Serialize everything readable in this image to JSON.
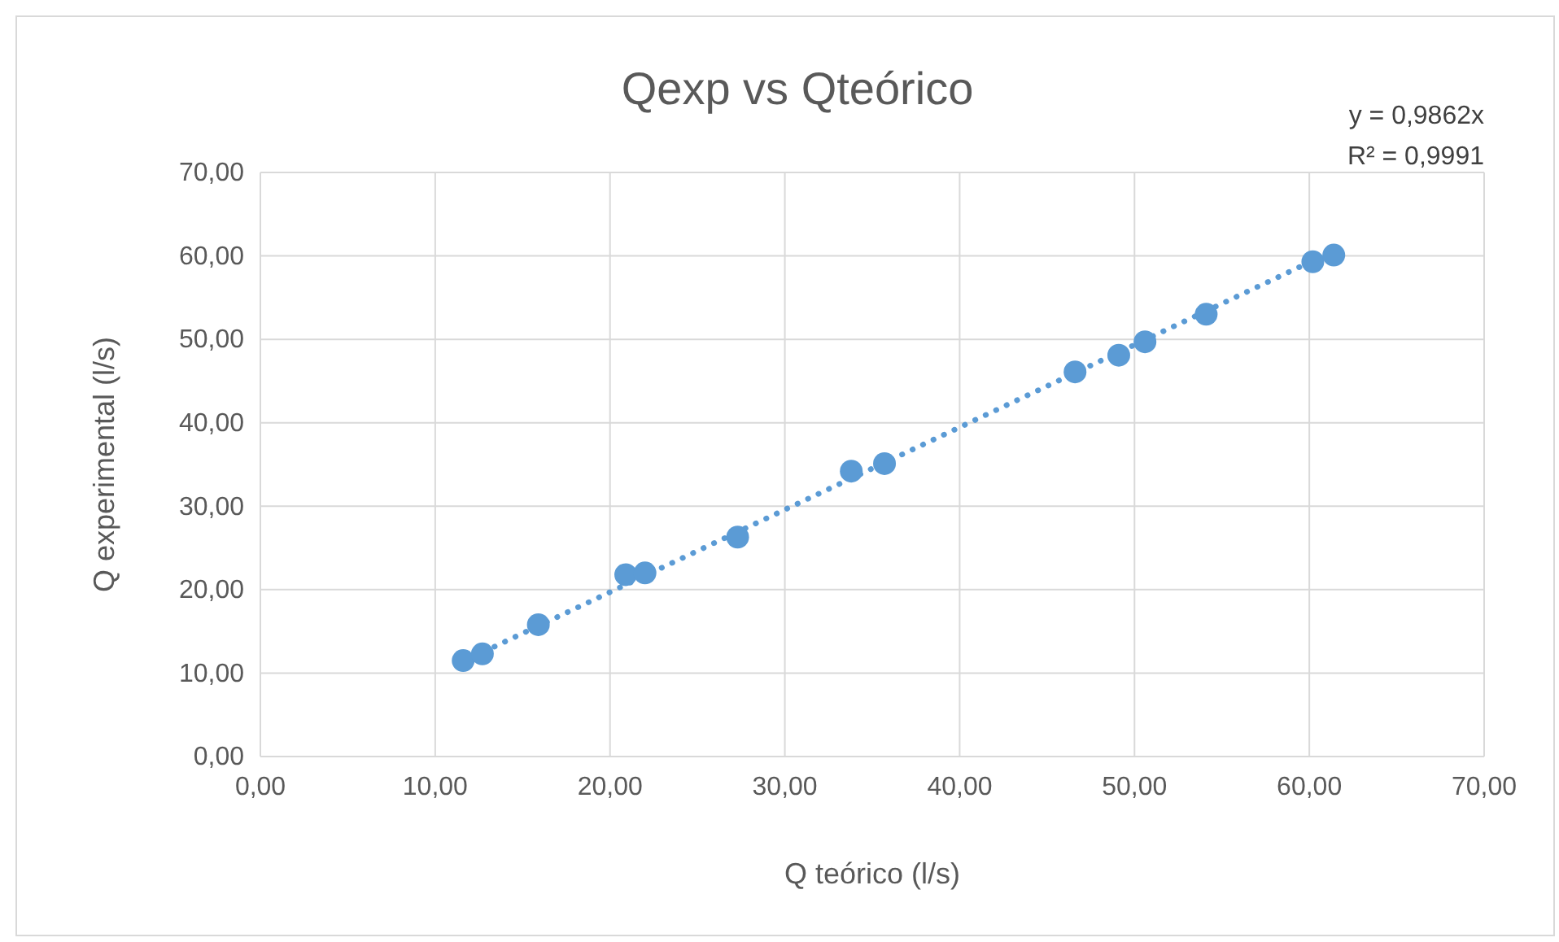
{
  "chart_data": {
    "type": "scatter",
    "title": "Qexp vs Qteórico",
    "xlabel": "Q teórico (l/s)",
    "ylabel": "Q experimental (l/s)",
    "annotations": [
      "y = 0,9862x",
      "R² = 0,9991"
    ],
    "series": [
      {
        "color": "#5b9bd5",
        "marker": "circle",
        "x": [
          11.6,
          12.7,
          15.9,
          20.9,
          22.0,
          27.3,
          33.8,
          35.7,
          46.6,
          49.1,
          50.6,
          54.1,
          60.2,
          61.4
        ],
        "values": [
          11.5,
          12.3,
          15.8,
          21.8,
          22.0,
          26.3,
          34.2,
          35.1,
          46.1,
          48.1,
          49.7,
          53.0,
          59.3,
          60.1
        ]
      },
      {
        "type": "line",
        "color": "#5b9bd5",
        "line_style": "dotted",
        "x": [
          11.6,
          61.4
        ],
        "values": [
          11.4,
          60.6
        ]
      }
    ],
    "xlim": [
      0,
      70
    ],
    "ylim": [
      0,
      70
    ],
    "xticks": [
      {
        "value": 0,
        "label": "0,00"
      },
      {
        "value": 10,
        "label": "10,00"
      },
      {
        "value": 20,
        "label": "20,00"
      },
      {
        "value": 30,
        "label": "30,00"
      },
      {
        "value": 40,
        "label": "40,00"
      },
      {
        "value": 50,
        "label": "50,00"
      },
      {
        "value": 60,
        "label": "60,00"
      },
      {
        "value": 70,
        "label": "70,00"
      }
    ],
    "yticks": [
      {
        "value": 0,
        "label": "0,00"
      },
      {
        "value": 10,
        "label": "10,00"
      },
      {
        "value": 20,
        "label": "20,00"
      },
      {
        "value": 30,
        "label": "30,00"
      },
      {
        "value": 40,
        "label": "40,00"
      },
      {
        "value": 50,
        "label": "50,00"
      },
      {
        "value": 60,
        "label": "60,00"
      },
      {
        "value": 70,
        "label": "70,00"
      }
    ],
    "grid": true
  }
}
